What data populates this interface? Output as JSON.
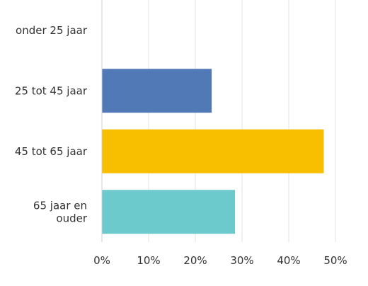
{
  "chart_data": {
    "type": "bar",
    "orientation": "horizontal",
    "categories": [
      [
        "onder 25 jaar"
      ],
      [
        "25 tot 45 jaar"
      ],
      [
        "45 tot 65 jaar"
      ],
      [
        "65 jaar en",
        "ouder"
      ]
    ],
    "values": [
      0,
      23.5,
      47.5,
      28.5
    ],
    "colors": [
      "#5079b6",
      "#5079b6",
      "#f8bf00",
      "#6ccacd"
    ],
    "xlim": [
      0,
      55
    ],
    "xticks": [
      0,
      10,
      20,
      30,
      40,
      50
    ],
    "xtick_labels": [
      "0%",
      "10%",
      "20%",
      "30%",
      "40%",
      "50%"
    ],
    "grid": true,
    "title": "",
    "xlabel": "",
    "ylabel": ""
  }
}
